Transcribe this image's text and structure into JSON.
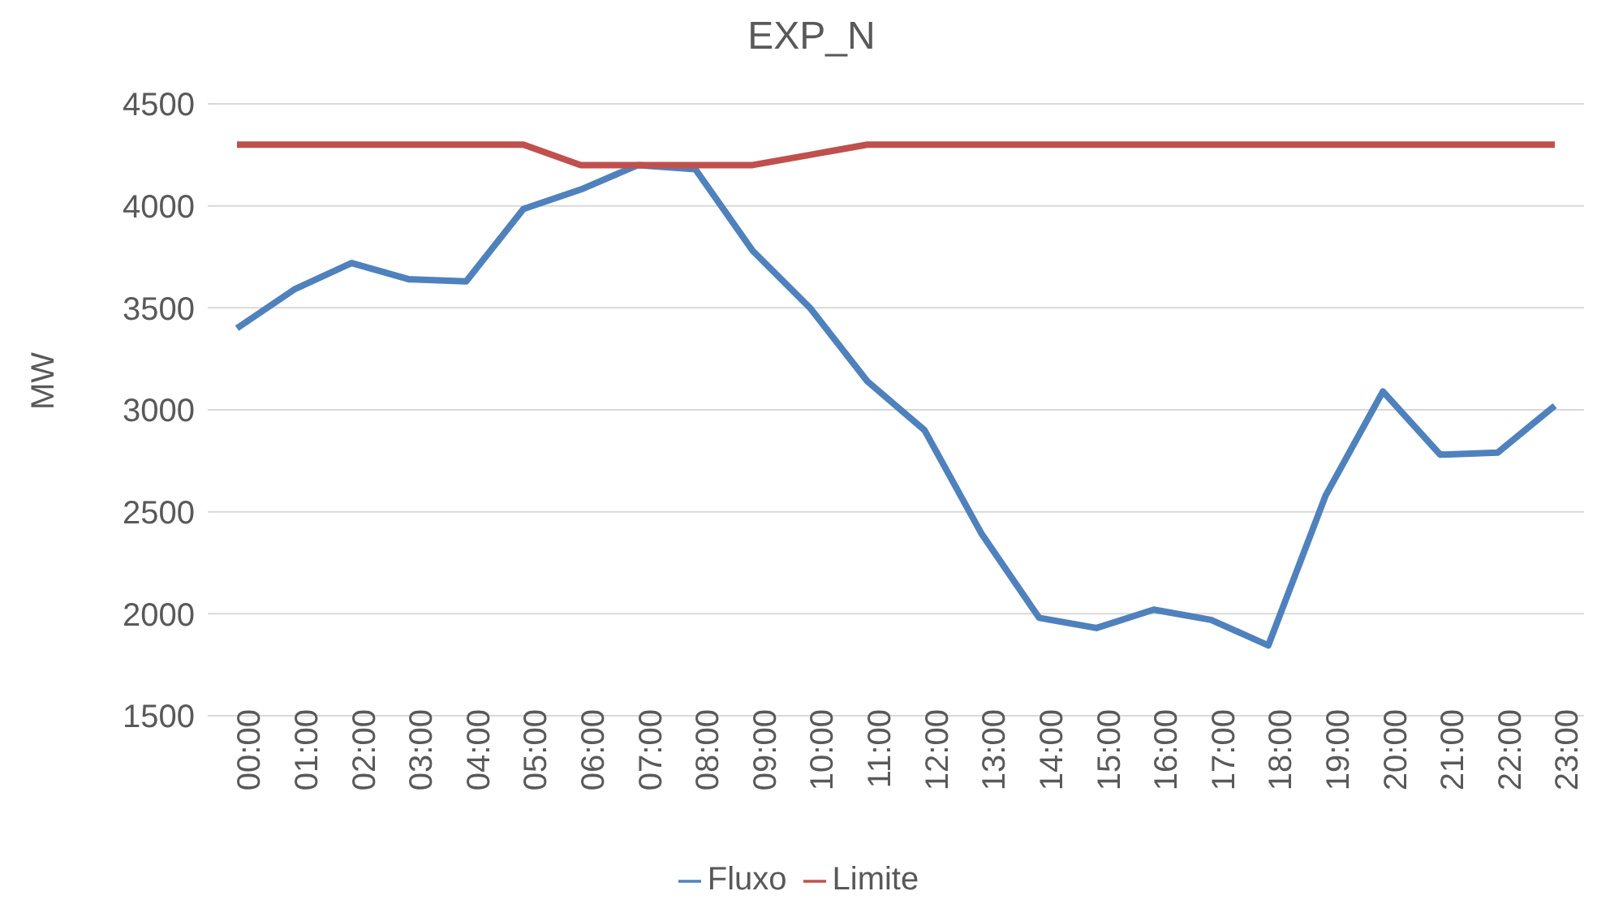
{
  "chart_data": {
    "type": "line",
    "title": "EXP_N",
    "ylabel": "MW",
    "categories": [
      "00:00",
      "01:00",
      "02:00",
      "03:00",
      "04:00",
      "05:00",
      "06:00",
      "07:00",
      "08:00",
      "09:00",
      "10:00",
      "11:00",
      "12:00",
      "13:00",
      "14:00",
      "15:00",
      "16:00",
      "17:00",
      "18:00",
      "19:00",
      "20:00",
      "21:00",
      "22:00",
      "23:00"
    ],
    "series": [
      {
        "name": "Fluxo",
        "color": "#4f81bd",
        "values": [
          3400,
          3590,
          3720,
          3640,
          3630,
          3985,
          4080,
          4200,
          4180,
          3780,
          3500,
          3140,
          2900,
          2390,
          1980,
          1930,
          2020,
          1970,
          1845,
          2580,
          3090,
          2780,
          2790,
          3020
        ]
      },
      {
        "name": "Limite",
        "color": "#c0504d",
        "values": [
          4300,
          4300,
          4300,
          4300,
          4300,
          4300,
          4200,
          4200,
          4200,
          4200,
          4250,
          4300,
          4300,
          4300,
          4300,
          4300,
          4300,
          4300,
          4300,
          4300,
          4300,
          4300,
          4300,
          4300
        ]
      }
    ],
    "ylim": [
      1500,
      4500
    ],
    "yticks": [
      1500,
      2000,
      2500,
      3000,
      3500,
      4000,
      4500
    ],
    "grid": "y",
    "legend": "bottom",
    "marker": "none",
    "line_style": "solid"
  }
}
